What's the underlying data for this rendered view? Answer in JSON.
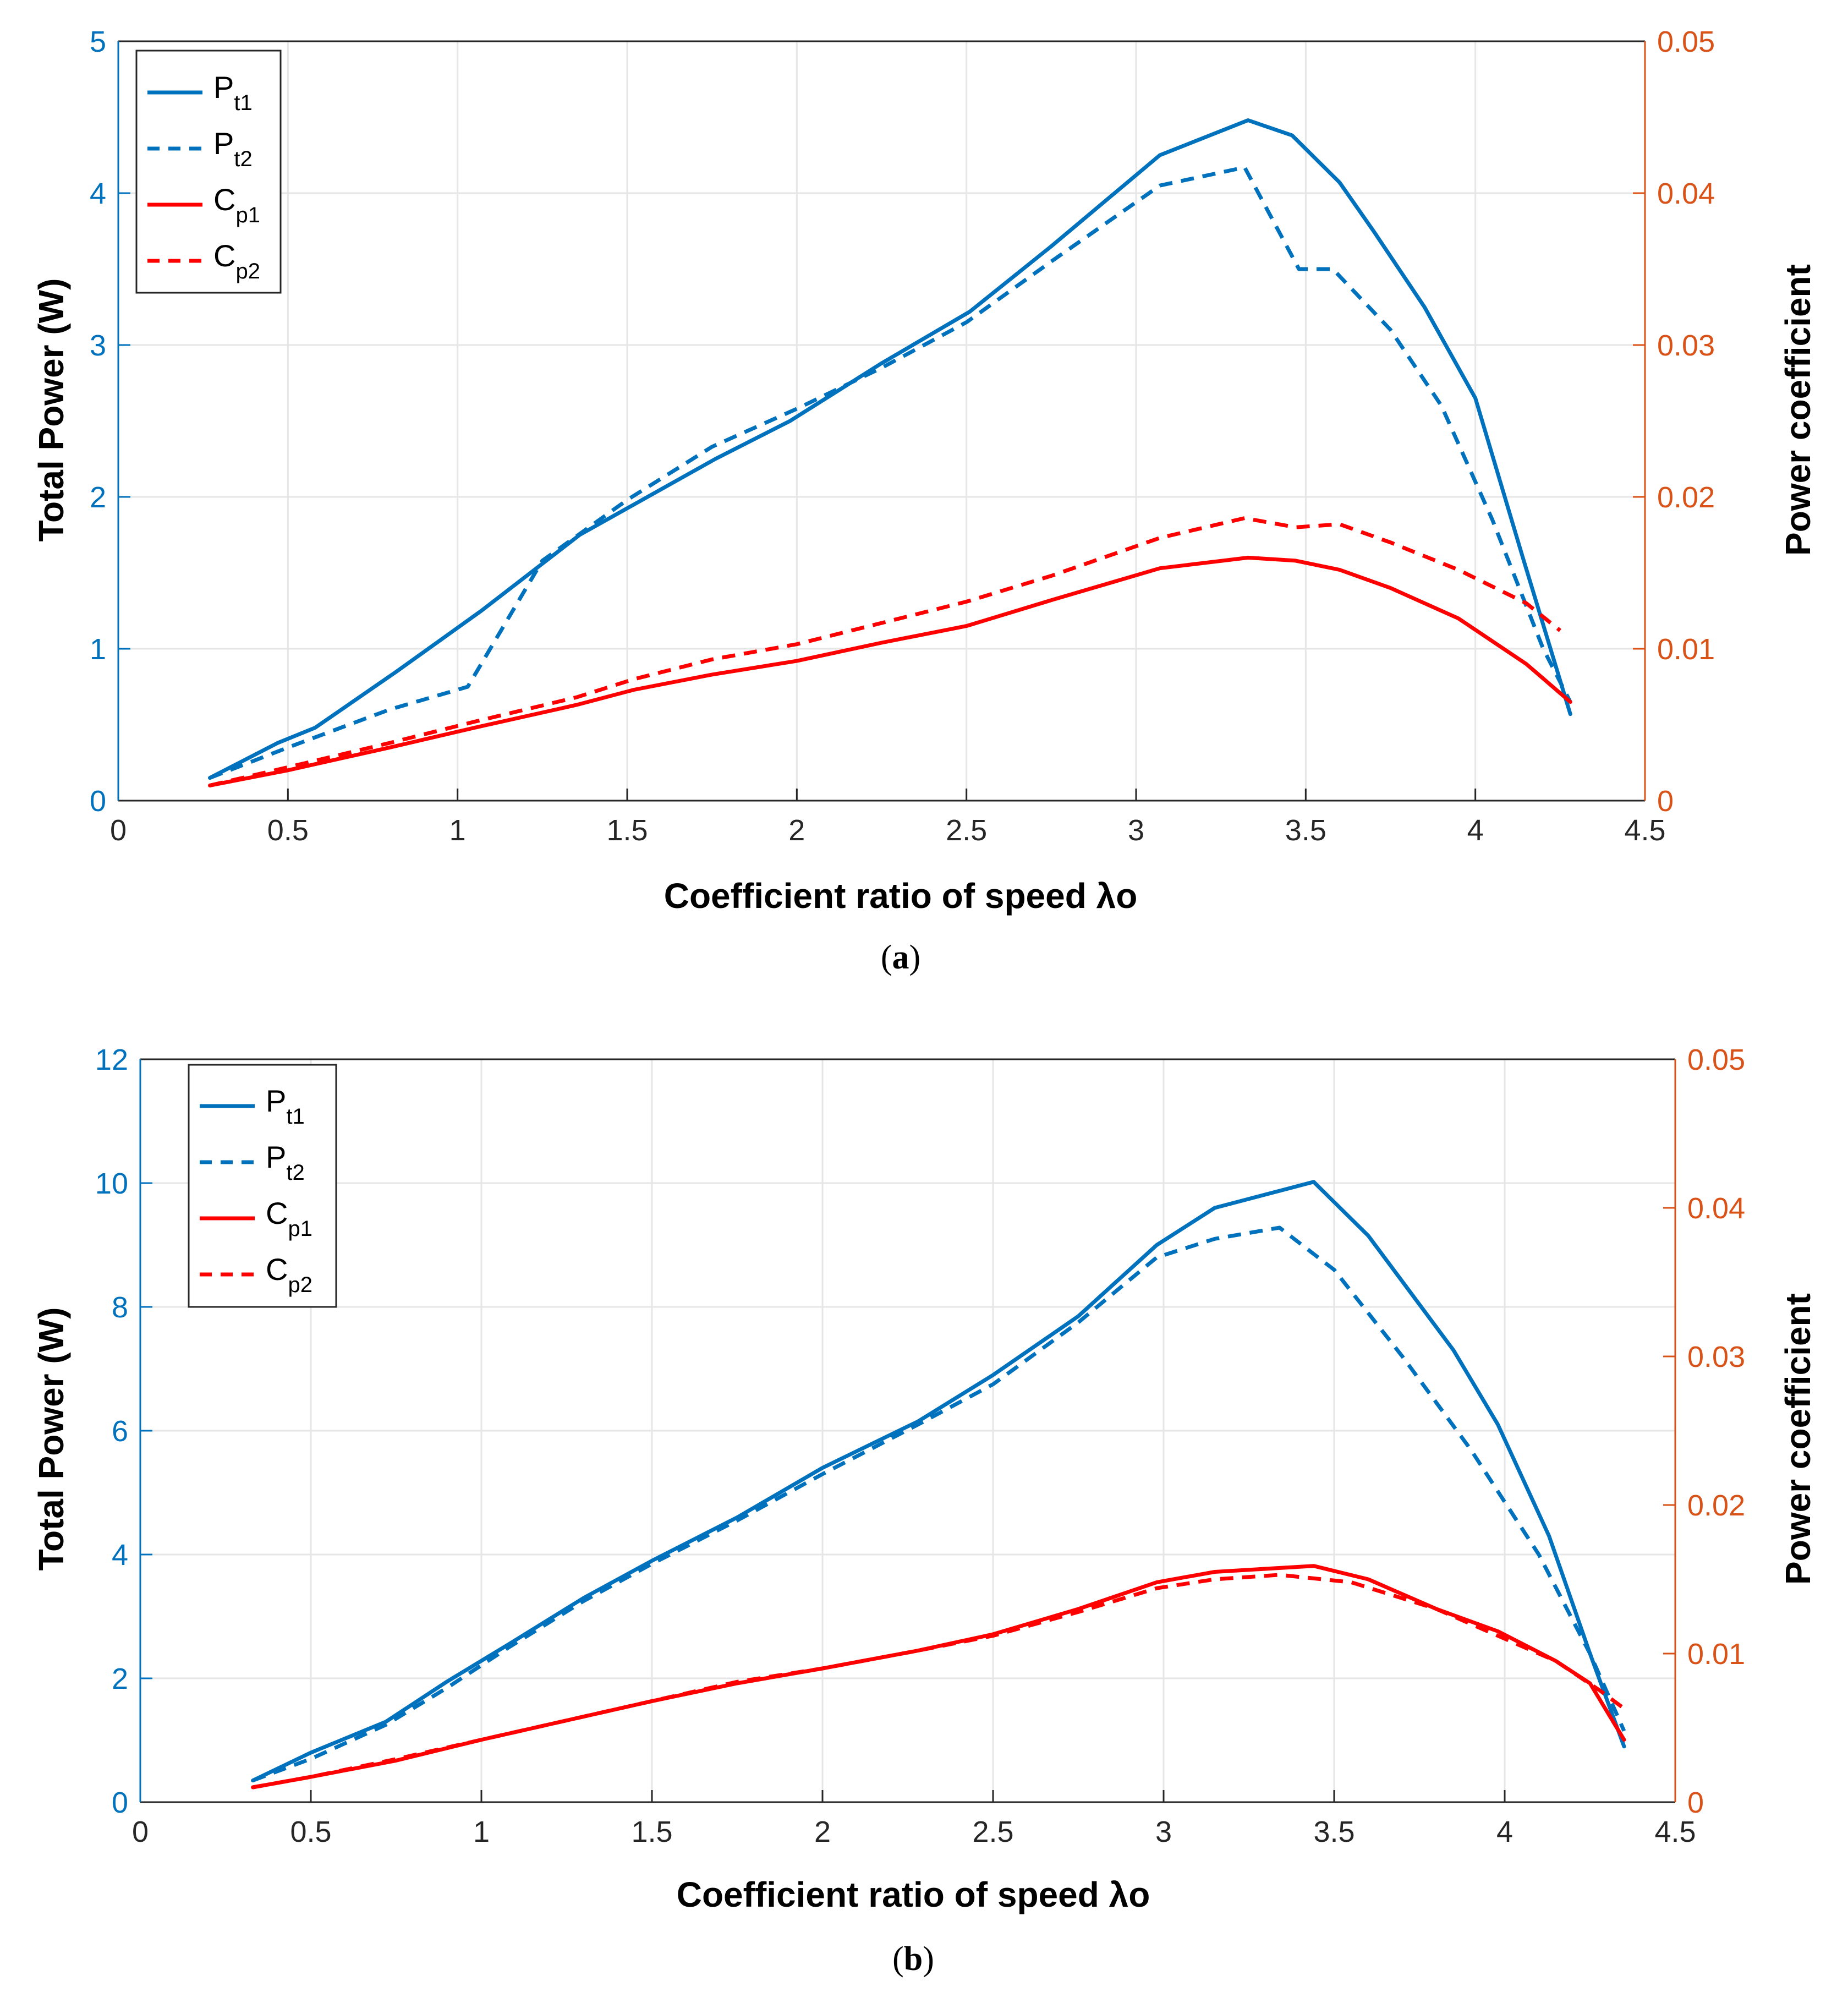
{
  "colors": {
    "left_axis": "#0072BD",
    "right_axis": "#D95319",
    "pt": "#0072BD",
    "cp": "#FF0000",
    "grid": "#E6E6E6",
    "frame": "#262626"
  },
  "chart_data": [
    {
      "type": "line",
      "panel_label": "a",
      "xlabel": "Coefficient ratio of speed  λo",
      "ylabel_left": "Total Power (W)",
      "ylabel_right": "Power coefficient",
      "xlim": [
        0,
        4.5
      ],
      "ylim_left": [
        0,
        5
      ],
      "ylim_right": [
        0,
        0.05
      ],
      "xticks": [
        "0",
        "0.5",
        "1",
        "1.5",
        "2",
        "2.5",
        "3",
        "3.5",
        "4",
        "4.5"
      ],
      "yticks_left": [
        "0",
        "1",
        "2",
        "3",
        "4",
        "5"
      ],
      "yticks_right": [
        "0",
        "0.01",
        "0.02",
        "0.03",
        "0.04",
        "0.05"
      ],
      "legend_position": "top-left",
      "grid": true,
      "series": [
        {
          "name": "P",
          "sub": "t1",
          "axis": "left",
          "style": "solid",
          "color": "pt",
          "x": [
            0.27,
            0.47,
            0.58,
            0.82,
            1.07,
            1.36,
            1.52,
            1.76,
            1.98,
            2.25,
            2.51,
            2.75,
            3.07,
            3.33,
            3.46,
            3.6,
            3.7,
            3.85,
            4.0,
            4.14,
            4.28
          ],
          "y": [
            0.15,
            0.38,
            0.48,
            0.85,
            1.25,
            1.75,
            1.95,
            2.25,
            2.5,
            2.88,
            3.22,
            3.65,
            4.25,
            4.48,
            4.38,
            4.07,
            3.75,
            3.25,
            2.65,
            1.6,
            0.57
          ]
        },
        {
          "name": "P",
          "sub": "t2",
          "axis": "left",
          "style": "dashed",
          "color": "pt",
          "x": [
            0.27,
            0.5,
            0.8,
            1.03,
            1.25,
            1.5,
            1.75,
            2.0,
            2.25,
            2.5,
            2.75,
            3.07,
            3.32,
            3.48,
            3.58,
            3.75,
            3.9,
            4.05,
            4.2,
            4.28
          ],
          "y": [
            0.15,
            0.35,
            0.6,
            0.75,
            1.58,
            1.98,
            2.33,
            2.58,
            2.85,
            3.15,
            3.55,
            4.05,
            4.17,
            3.5,
            3.5,
            3.1,
            2.6,
            1.85,
            1.0,
            0.65
          ]
        },
        {
          "name": "C",
          "sub": "p1",
          "axis": "right",
          "style": "solid",
          "color": "cp",
          "x": [
            0.27,
            0.5,
            0.8,
            1.05,
            1.35,
            1.52,
            1.75,
            2.0,
            2.25,
            2.5,
            2.75,
            3.07,
            3.33,
            3.47,
            3.6,
            3.75,
            3.95,
            4.15,
            4.28
          ],
          "y": [
            0.001,
            0.002,
            0.0035,
            0.0048,
            0.0063,
            0.0073,
            0.0083,
            0.0092,
            0.0104,
            0.0115,
            0.0132,
            0.0153,
            0.016,
            0.0158,
            0.0152,
            0.014,
            0.012,
            0.009,
            0.0065
          ]
        },
        {
          "name": "C",
          "sub": "p2",
          "axis": "right",
          "style": "dashed",
          "color": "cp",
          "x": [
            0.27,
            0.5,
            0.8,
            1.05,
            1.35,
            1.52,
            1.75,
            2.0,
            2.25,
            2.5,
            2.75,
            3.07,
            3.32,
            3.47,
            3.6,
            3.75,
            3.95,
            4.15,
            4.25
          ],
          "y": [
            0.001,
            0.0022,
            0.0038,
            0.0052,
            0.0068,
            0.008,
            0.0093,
            0.0103,
            0.0117,
            0.0131,
            0.0148,
            0.0173,
            0.0186,
            0.018,
            0.0182,
            0.017,
            0.0152,
            0.013,
            0.0112
          ]
        }
      ]
    },
    {
      "type": "line",
      "panel_label": "b",
      "xlabel": "Coefficient ratio of speed  λo",
      "ylabel_left": "Total Power (W)",
      "ylabel_right": "Power coefficient",
      "xlim": [
        0,
        4.5
      ],
      "ylim_left": [
        0,
        12
      ],
      "ylim_right": [
        0,
        0.05
      ],
      "xticks": [
        "0",
        "0.5",
        "1",
        "1.5",
        "2",
        "2.5",
        "3",
        "3.5",
        "4",
        "4.5"
      ],
      "yticks_left": [
        "0",
        "2",
        "4",
        "6",
        "8",
        "10",
        "12"
      ],
      "yticks_right": [
        "0",
        "0.01",
        "0.02",
        "0.03",
        "0.04",
        "0.05"
      ],
      "legend_position": "top-left",
      "grid": true,
      "series": [
        {
          "name": "P",
          "sub": "t1",
          "axis": "left",
          "style": "solid",
          "color": "pt",
          "x": [
            0.33,
            0.5,
            0.72,
            0.9,
            1.08,
            1.3,
            1.5,
            1.75,
            2.0,
            2.28,
            2.5,
            2.75,
            2.98,
            3.15,
            3.44,
            3.6,
            3.85,
            3.98,
            4.13,
            4.25,
            4.35
          ],
          "y": [
            0.35,
            0.8,
            1.3,
            1.95,
            2.55,
            3.3,
            3.9,
            4.6,
            5.4,
            6.15,
            6.9,
            7.85,
            9.0,
            9.6,
            10.02,
            9.15,
            7.3,
            6.1,
            4.3,
            2.4,
            0.9
          ]
        },
        {
          "name": "P",
          "sub": "t2",
          "axis": "left",
          "style": "dashed",
          "color": "pt",
          "x": [
            0.33,
            0.5,
            0.72,
            0.9,
            1.08,
            1.3,
            1.5,
            1.75,
            2.0,
            2.28,
            2.5,
            2.75,
            2.98,
            3.15,
            3.34,
            3.5,
            3.7,
            3.9,
            4.1,
            4.25,
            4.35
          ],
          "y": [
            0.35,
            0.7,
            1.25,
            1.85,
            2.5,
            3.25,
            3.85,
            4.55,
            5.3,
            6.1,
            6.75,
            7.75,
            8.8,
            9.1,
            9.28,
            8.6,
            7.2,
            5.7,
            4.0,
            2.4,
            1.15
          ]
        },
        {
          "name": "C",
          "sub": "p1",
          "axis": "right",
          "style": "solid",
          "color": "cp",
          "x": [
            0.33,
            0.5,
            0.75,
            1.0,
            1.25,
            1.5,
            1.75,
            2.0,
            2.28,
            2.5,
            2.75,
            2.98,
            3.15,
            3.44,
            3.6,
            3.8,
            3.98,
            4.15,
            4.25,
            4.35
          ],
          "y": [
            0.001,
            0.0017,
            0.0028,
            0.0042,
            0.0055,
            0.0068,
            0.008,
            0.009,
            0.0102,
            0.0113,
            0.013,
            0.0148,
            0.0155,
            0.0159,
            0.015,
            0.013,
            0.0115,
            0.0095,
            0.008,
            0.0042
          ]
        },
        {
          "name": "C",
          "sub": "p2",
          "axis": "right",
          "style": "dashed",
          "color": "cp",
          "x": [
            0.33,
            0.5,
            0.75,
            1.0,
            1.25,
            1.5,
            1.75,
            2.0,
            2.28,
            2.5,
            2.75,
            2.98,
            3.15,
            3.34,
            3.55,
            3.8,
            3.98,
            4.15,
            4.28,
            4.35
          ],
          "y": [
            0.001,
            0.0017,
            0.0029,
            0.0042,
            0.0055,
            0.0068,
            0.0081,
            0.009,
            0.0102,
            0.0112,
            0.0128,
            0.0144,
            0.015,
            0.0153,
            0.0148,
            0.013,
            0.0112,
            0.0095,
            0.0075,
            0.0063
          ]
        }
      ]
    }
  ]
}
